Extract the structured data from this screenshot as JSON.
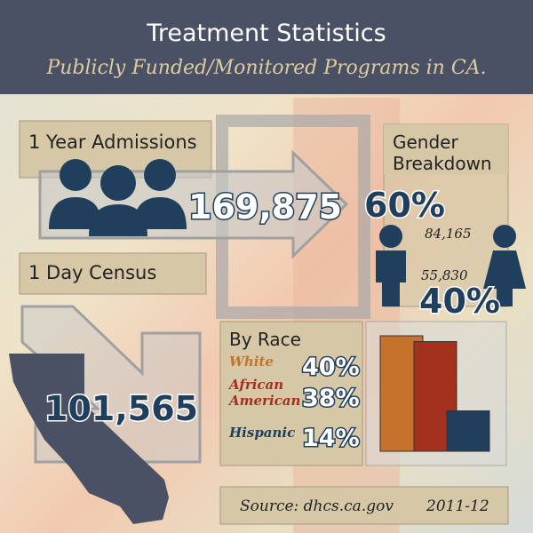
{
  "header": {
    "title": "Treatment Statistics",
    "subtitle": "Publicly  Funded/Monitored Programs in CA."
  },
  "admissions": {
    "label": "1 Year Admissions",
    "value": "169,875"
  },
  "census": {
    "label": "1 Day Census",
    "value": "101,565"
  },
  "gender": {
    "label_lines": [
      "Gender",
      "Breakdown"
    ],
    "male": {
      "percent": "60%",
      "count": "84,165"
    },
    "female": {
      "percent": "40%",
      "count": "55,830"
    }
  },
  "race": {
    "title": "By Race",
    "items": [
      {
        "label_lines": [
          "White"
        ],
        "value": 40,
        "value_label": "40%",
        "color": "#c4722c"
      },
      {
        "label_lines": [
          "African",
          "American"
        ],
        "value": 38,
        "value_label": "38%",
        "color": "#a4311e"
      },
      {
        "label_lines": [
          "Hispanic"
        ],
        "value": 14,
        "value_label": "14%",
        "color": "#1f3f5c"
      }
    ]
  },
  "source": {
    "text": "Source: dhcs.ca.gov",
    "year": "2011-12"
  }
}
